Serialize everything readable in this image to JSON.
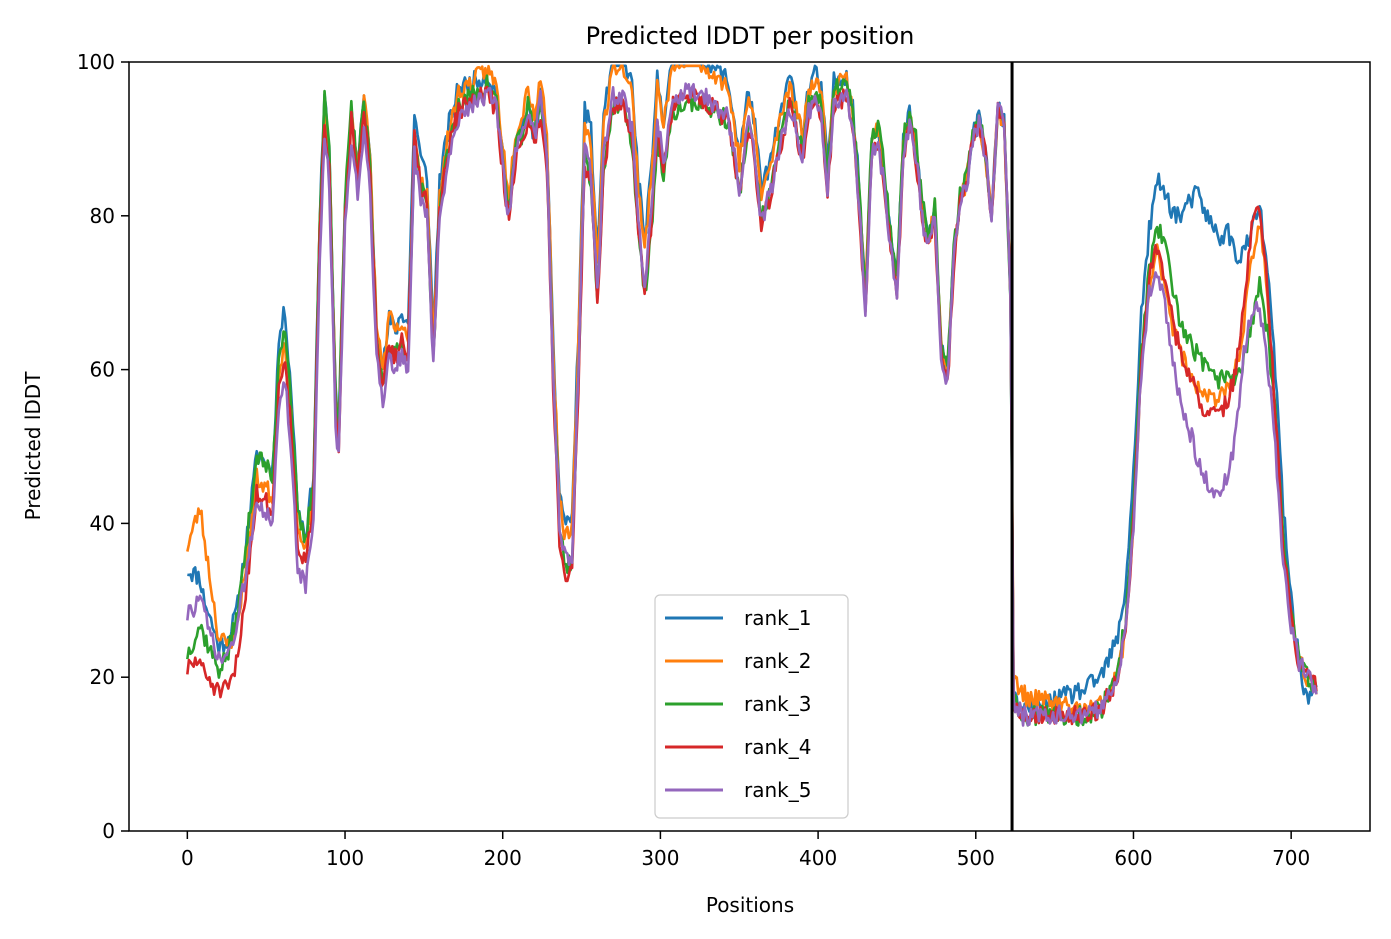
{
  "chart_data": {
    "type": "line",
    "title": "Predicted lDDT per position",
    "xlabel": "Positions",
    "ylabel": "Predicted lDDT",
    "xlim": [
      -37,
      750
    ],
    "ylim": [
      0,
      100
    ],
    "xticks": [
      0,
      100,
      200,
      300,
      400,
      500,
      600,
      700
    ],
    "yticks": [
      0,
      20,
      40,
      60,
      80,
      100
    ],
    "vline_x": 523,
    "legend_position": "lower center",
    "grid": false,
    "colors": {
      "rank_1": "#1f77b4",
      "rank_2": "#ff7f0e",
      "rank_3": "#2ca02c",
      "rank_4": "#d62728",
      "rank_5": "#9467bd"
    },
    "base_profile": [
      [
        0,
        27
      ],
      [
        8,
        30
      ],
      [
        14,
        26
      ],
      [
        20,
        22
      ],
      [
        26,
        23
      ],
      [
        32,
        27
      ],
      [
        38,
        35
      ],
      [
        44,
        44
      ],
      [
        50,
        42
      ],
      [
        54,
        40
      ],
      [
        58,
        56
      ],
      [
        62,
        60
      ],
      [
        66,
        50
      ],
      [
        70,
        36
      ],
      [
        75,
        33
      ],
      [
        80,
        42
      ],
      [
        84,
        76
      ],
      [
        87,
        92
      ],
      [
        90,
        86
      ],
      [
        94,
        55
      ],
      [
        96,
        50
      ],
      [
        100,
        80
      ],
      [
        104,
        92
      ],
      [
        108,
        84
      ],
      [
        112,
        93
      ],
      [
        116,
        84
      ],
      [
        120,
        62
      ],
      [
        124,
        56
      ],
      [
        128,
        62
      ],
      [
        132,
        60
      ],
      [
        136,
        62
      ],
      [
        140,
        60
      ],
      [
        144,
        88
      ],
      [
        148,
        82
      ],
      [
        152,
        80
      ],
      [
        156,
        60
      ],
      [
        160,
        80
      ],
      [
        166,
        88
      ],
      [
        172,
        93
      ],
      [
        178,
        94
      ],
      [
        184,
        95
      ],
      [
        190,
        96
      ],
      [
        196,
        94
      ],
      [
        200,
        86
      ],
      [
        204,
        80
      ],
      [
        208,
        88
      ],
      [
        212,
        90
      ],
      [
        216,
        94
      ],
      [
        220,
        90
      ],
      [
        224,
        95
      ],
      [
        228,
        88
      ],
      [
        232,
        60
      ],
      [
        236,
        40
      ],
      [
        240,
        35
      ],
      [
        244,
        36
      ],
      [
        248,
        60
      ],
      [
        252,
        89
      ],
      [
        256,
        86
      ],
      [
        260,
        70
      ],
      [
        264,
        88
      ],
      [
        270,
        96
      ],
      [
        276,
        96
      ],
      [
        282,
        92
      ],
      [
        286,
        80
      ],
      [
        290,
        72
      ],
      [
        294,
        80
      ],
      [
        298,
        93
      ],
      [
        302,
        88
      ],
      [
        308,
        96
      ],
      [
        316,
        97
      ],
      [
        324,
        97
      ],
      [
        330,
        96
      ],
      [
        336,
        95
      ],
      [
        342,
        94
      ],
      [
        346,
        90
      ],
      [
        350,
        84
      ],
      [
        356,
        93
      ],
      [
        360,
        88
      ],
      [
        364,
        80
      ],
      [
        370,
        84
      ],
      [
        376,
        90
      ],
      [
        382,
        95
      ],
      [
        386,
        92
      ],
      [
        390,
        88
      ],
      [
        394,
        94
      ],
      [
        398,
        96
      ],
      [
        402,
        94
      ],
      [
        406,
        84
      ],
      [
        410,
        95
      ],
      [
        414,
        96
      ],
      [
        418,
        96
      ],
      [
        422,
        92
      ],
      [
        426,
        82
      ],
      [
        430,
        68
      ],
      [
        434,
        88
      ],
      [
        438,
        90
      ],
      [
        442,
        84
      ],
      [
        446,
        76
      ],
      [
        450,
        70
      ],
      [
        454,
        88
      ],
      [
        458,
        92
      ],
      [
        462,
        88
      ],
      [
        466,
        80
      ],
      [
        470,
        76
      ],
      [
        474,
        80
      ],
      [
        478,
        62
      ],
      [
        482,
        58
      ],
      [
        486,
        74
      ],
      [
        490,
        82
      ],
      [
        494,
        84
      ],
      [
        498,
        90
      ],
      [
        502,
        92
      ],
      [
        506,
        88
      ],
      [
        510,
        80
      ],
      [
        514,
        94
      ],
      [
        518,
        92
      ],
      [
        522,
        70
      ],
      [
        524,
        17
      ],
      [
        530,
        15
      ],
      [
        540,
        15
      ],
      [
        550,
        15
      ],
      [
        560,
        15
      ],
      [
        570,
        15
      ],
      [
        580,
        16
      ],
      [
        590,
        20
      ],
      [
        595,
        26
      ],
      [
        600,
        40
      ],
      [
        605,
        60
      ],
      [
        610,
        70
      ],
      [
        615,
        74
      ],
      [
        620,
        70
      ],
      [
        625,
        64
      ],
      [
        630,
        60
      ],
      [
        635,
        58
      ],
      [
        640,
        56
      ],
      [
        645,
        55
      ],
      [
        650,
        54
      ],
      [
        655,
        54
      ],
      [
        660,
        56
      ],
      [
        665,
        58
      ],
      [
        670,
        64
      ],
      [
        675,
        72
      ],
      [
        680,
        74
      ],
      [
        685,
        64
      ],
      [
        690,
        50
      ],
      [
        695,
        35
      ],
      [
        700,
        27
      ],
      [
        705,
        22
      ],
      [
        710,
        20
      ],
      [
        716,
        19
      ]
    ],
    "series": [
      {
        "name": "rank_1",
        "offsets": [
          [
            0,
            7
          ],
          [
            10,
            2
          ],
          [
            30,
            2
          ],
          [
            60,
            8
          ],
          [
            100,
            1
          ],
          [
            140,
            6
          ],
          [
            220,
            0
          ],
          [
            240,
            5
          ],
          [
            290,
            5
          ],
          [
            520,
            0
          ],
          [
            524,
            0
          ],
          [
            590,
            5
          ],
          [
            610,
            8
          ],
          [
            620,
            13
          ],
          [
            640,
            27
          ],
          [
            660,
            22
          ],
          [
            675,
            6
          ],
          [
            690,
            10
          ],
          [
            705,
            0
          ],
          [
            710,
            -3
          ],
          [
            716,
            0
          ]
        ],
        "seed": 11
      },
      {
        "name": "rank_2",
        "offsets": [
          [
            0,
            10
          ],
          [
            8,
            12
          ],
          [
            20,
            3
          ],
          [
            30,
            0
          ],
          [
            60,
            4
          ],
          [
            100,
            1
          ],
          [
            130,
            5
          ],
          [
            140,
            3
          ],
          [
            240,
            3
          ],
          [
            290,
            4
          ],
          [
            520,
            0
          ],
          [
            524,
            3
          ],
          [
            560,
            1
          ],
          [
            600,
            0
          ],
          [
            610,
            1
          ],
          [
            630,
            2
          ],
          [
            660,
            2
          ],
          [
            675,
            2
          ],
          [
            682,
            6
          ],
          [
            690,
            4
          ],
          [
            700,
            0
          ],
          [
            716,
            0
          ]
        ],
        "seed": 23
      },
      {
        "name": "rank_3",
        "offsets": [
          [
            0,
            -4
          ],
          [
            10,
            -3
          ],
          [
            30,
            1
          ],
          [
            44,
            5
          ],
          [
            60,
            6
          ],
          [
            100,
            2
          ],
          [
            200,
            1
          ],
          [
            300,
            -3
          ],
          [
            440,
            2
          ],
          [
            470,
            2
          ],
          [
            520,
            0
          ],
          [
            524,
            0
          ],
          [
            580,
            0
          ],
          [
            610,
            3
          ],
          [
            620,
            6
          ],
          [
            640,
            6
          ],
          [
            660,
            4
          ],
          [
            675,
            -6
          ],
          [
            690,
            4
          ],
          [
            705,
            0
          ],
          [
            716,
            0
          ]
        ],
        "seed": 37
      },
      {
        "name": "rank_4",
        "offsets": [
          [
            0,
            -6
          ],
          [
            10,
            -8
          ],
          [
            20,
            -4
          ],
          [
            30,
            -5
          ],
          [
            44,
            0
          ],
          [
            60,
            2
          ],
          [
            100,
            0
          ],
          [
            140,
            2
          ],
          [
            240,
            -2
          ],
          [
            520,
            0
          ],
          [
            524,
            0
          ],
          [
            560,
            0
          ],
          [
            600,
            0
          ],
          [
            610,
            2
          ],
          [
            630,
            2
          ],
          [
            645,
            0
          ],
          [
            660,
            0
          ],
          [
            675,
            6
          ],
          [
            682,
            8
          ],
          [
            690,
            4
          ],
          [
            700,
            0
          ],
          [
            716,
            0
          ]
        ],
        "seed": 51
      },
      {
        "name": "rank_5",
        "offsets": [
          [
            0,
            1
          ],
          [
            10,
            0
          ],
          [
            30,
            0
          ],
          [
            60,
            -1
          ],
          [
            100,
            -2
          ],
          [
            130,
            0
          ],
          [
            240,
            0
          ],
          [
            320,
            -1
          ],
          [
            520,
            0
          ],
          [
            524,
            0
          ],
          [
            580,
            0
          ],
          [
            610,
            0
          ],
          [
            630,
            -4
          ],
          [
            650,
            -10
          ],
          [
            660,
            -10
          ],
          [
            670,
            -2
          ],
          [
            680,
            -6
          ],
          [
            690,
            0
          ],
          [
            705,
            0
          ],
          [
            716,
            0
          ]
        ],
        "seed": 73
      }
    ]
  }
}
